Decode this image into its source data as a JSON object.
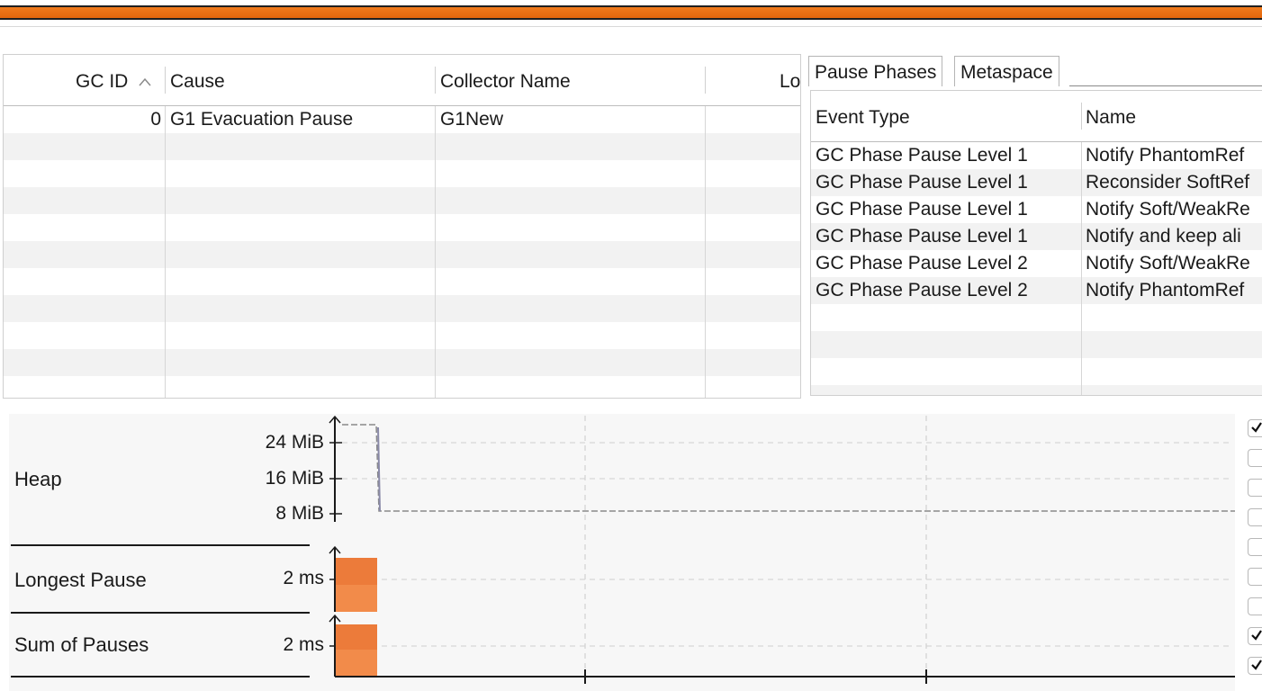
{
  "progress": {
    "fraction": 1.0,
    "color": "#ec6f15"
  },
  "gc_table": {
    "columns": [
      "GC ID",
      "Cause",
      "Collector Name",
      "Lo"
    ],
    "sort_indicator": "^",
    "rows": [
      {
        "gc_id": "0",
        "cause": "G1 Evacuation Pause",
        "collector": "G1New",
        "lo": ""
      }
    ]
  },
  "tabs": [
    {
      "label": "Pause Phases",
      "active": true
    },
    {
      "label": "Metaspace",
      "active": false
    }
  ],
  "phases_table": {
    "columns": [
      "Event Type",
      "Name"
    ],
    "rows": [
      {
        "event_type": "GC Phase Pause Level 1",
        "name": "Notify PhantomRef"
      },
      {
        "event_type": "GC Phase Pause Level 1",
        "name": "Reconsider SoftRef"
      },
      {
        "event_type": "GC Phase Pause Level 1",
        "name": "Notify Soft/WeakRe"
      },
      {
        "event_type": "GC Phase Pause Level 1",
        "name": "Notify and keep ali"
      },
      {
        "event_type": "GC Phase Pause Level 2",
        "name": "Notify Soft/WeakRe"
      },
      {
        "event_type": "GC Phase Pause Level 2",
        "name": "Notify PhantomRef"
      }
    ]
  },
  "chart": {
    "lanes": [
      {
        "label": "Heap",
        "ticks": [
          "24 MiB",
          "16 MiB",
          "8 MiB"
        ]
      },
      {
        "label": "Longest Pause",
        "value": "2 ms"
      },
      {
        "label": "Sum of Pauses",
        "value": "2 ms"
      }
    ],
    "bar_color": "#f28b4a",
    "heap_line_color": "#8a8a8a"
  },
  "checkboxes": [
    true,
    false,
    false,
    false,
    false,
    false,
    false,
    true,
    true
  ]
}
